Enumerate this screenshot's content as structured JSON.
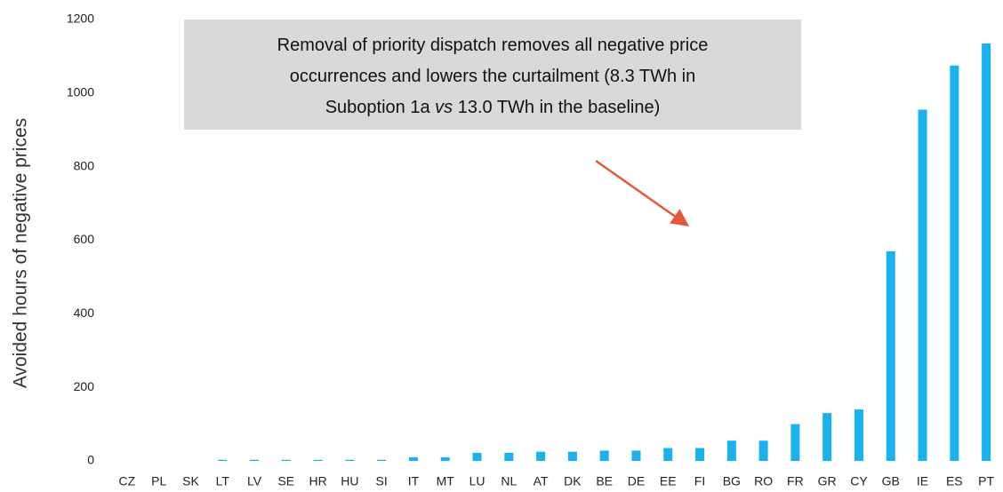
{
  "chart_data": {
    "type": "bar",
    "y_label": "Avoided hours of negative prices",
    "annotation": [
      [
        "Removal of priority dispatch removes all negative price"
      ],
      [
        "occurrences and lowers the curtailment (8.3 TWh in"
      ],
      [
        "Suboption 1a ",
        "vs",
        " 13.0 TWh in the baseline)"
      ]
    ],
    "categories": [
      "CZ",
      "PL",
      "SK",
      "LT",
      "LV",
      "SE",
      "HR",
      "HU",
      "SI",
      "IT",
      "MT",
      "LU",
      "NL",
      "AT",
      "DK",
      "BE",
      "DE",
      "EE",
      "FI",
      "BG",
      "RO",
      "FR",
      "GR",
      "CY",
      "GB",
      "IE",
      "ES",
      "PT"
    ],
    "values": [
      0,
      0,
      0,
      3,
      3,
      3,
      3,
      3,
      3,
      10,
      10,
      22,
      22,
      25,
      25,
      28,
      28,
      35,
      35,
      55,
      55,
      100,
      130,
      140,
      570,
      955,
      1075,
      1135
    ],
    "color": "#1ab2ee",
    "ylim": [
      0,
      1200
    ],
    "yticks": [
      0,
      200,
      400,
      600,
      800,
      1000,
      1200
    ],
    "grid": false
  }
}
